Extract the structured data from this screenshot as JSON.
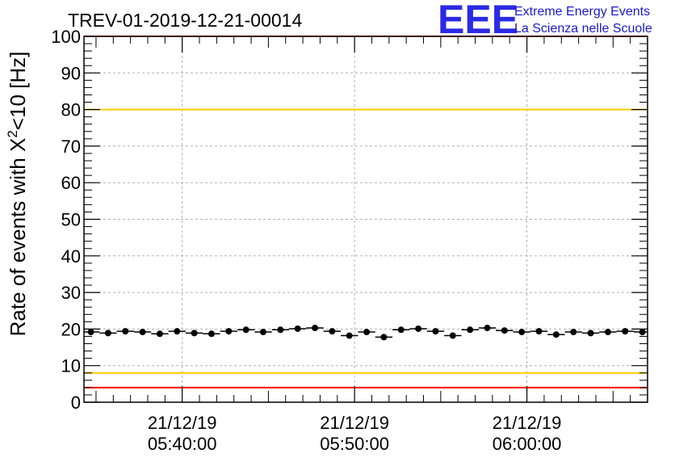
{
  "chart_data": {
    "type": "scatter",
    "title": "TREV-01-2019-12-21-00014",
    "ylabel_main": "Rate of events with X",
    "ylabel_sup": "2",
    "ylabel_tail": "<10 [Hz]",
    "xlabel": "",
    "ylim": [
      0,
      100
    ],
    "y_ticks": [
      "0",
      "10",
      "20",
      "30",
      "40",
      "50",
      "60",
      "70",
      "80",
      "90",
      "100"
    ],
    "x_tick_labels": [
      {
        "date": "21/12/19",
        "time": "05:40:00",
        "minutes": 40
      },
      {
        "date": "21/12/19",
        "time": "05:50:00",
        "minutes": 50
      },
      {
        "date": "21/12/19",
        "time": "06:00:00",
        "minutes": 60
      }
    ],
    "x_range_minutes": [
      34.3,
      67.0
    ],
    "grid": true,
    "reference_lines": [
      {
        "value": 100,
        "color": "#ff0000"
      },
      {
        "value": 80,
        "color": "#ffcc00"
      },
      {
        "value": 8,
        "color": "#ffcc00"
      },
      {
        "value": 4,
        "color": "#ff0000"
      }
    ],
    "x_minutes": [
      34.7,
      35.7,
      36.7,
      37.7,
      38.7,
      39.7,
      40.7,
      41.7,
      42.7,
      43.7,
      44.7,
      45.7,
      46.7,
      47.7,
      48.7,
      49.7,
      50.7,
      51.7,
      52.7,
      53.7,
      54.7,
      55.7,
      56.7,
      57.7,
      58.7,
      59.7,
      60.7,
      61.7,
      62.7,
      63.7,
      64.7,
      65.7,
      66.7
    ],
    "values": [
      19.2,
      18.9,
      19.4,
      19.2,
      18.7,
      19.4,
      18.9,
      18.7,
      19.4,
      19.8,
      19.2,
      19.8,
      20.1,
      20.3,
      19.4,
      18.2,
      19.2,
      17.8,
      19.8,
      20.1,
      19.4,
      18.2,
      19.8,
      20.3,
      19.6,
      19.2,
      19.4,
      18.5,
      19.2,
      18.9,
      19.2,
      19.4,
      19.2
    ],
    "marker_color": "#000000"
  },
  "logo": {
    "mark": "EEE",
    "line1": "Extreme Energy Events",
    "line2": "La Scienza nelle Scuole",
    "color": "#2a2ae6"
  }
}
